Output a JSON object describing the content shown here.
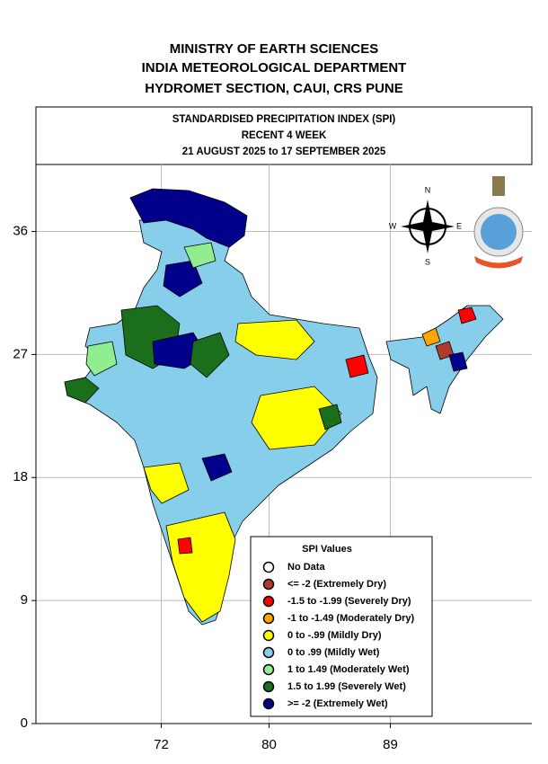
{
  "header": {
    "lines": [
      "MINISTRY OF EARTH SCIENCES",
      "INDIA METEOROLOGICAL DEPARTMENT",
      "HYDROMET SECTION, CAUI, CRS PUNE"
    ]
  },
  "title_box": {
    "lines": [
      "STANDARDISED PRECIPITATION INDEX (SPI)",
      "RECENT 4 WEEK",
      "21 AUGUST 2025 to 17 SEPTEMBER 2025"
    ]
  },
  "map": {
    "xlim": [
      62.7,
      99.5
    ],
    "ylim": [
      0,
      40.9
    ],
    "xticks": [
      72,
      80,
      89
    ],
    "yticks": [
      0,
      9,
      18,
      27,
      36
    ],
    "grid": true
  },
  "compass": {
    "n": "N",
    "e": "E",
    "s": "S",
    "w": "W"
  },
  "legend": {
    "title": "SPI Values",
    "items": [
      {
        "label": "No Data",
        "color": "#ffffff"
      },
      {
        "label": "<= -2 (Extremely Dry)",
        "color": "#b03a2e"
      },
      {
        "label": "-1.5 to -1.99 (Severely Dry)",
        "color": "#ff0000"
      },
      {
        "label": "-1 to -1.49 (Moderately Dry)",
        "color": "#ffa500"
      },
      {
        "label": "0 to -.99 (Mildly  Dry)",
        "color": "#ffff00"
      },
      {
        "label": "0 to .99 (Mildly  Wet)",
        "color": "#87ceeb"
      },
      {
        "label": "1 to 1.49 (Moderately Wet)",
        "color": "#90ee90"
      },
      {
        "label": "1.5 to 1.99 (Severely Wet)",
        "color": "#1b6e1b"
      },
      {
        "label": ">= -2 (Extremely Wet)",
        "color": "#00008b"
      }
    ]
  }
}
